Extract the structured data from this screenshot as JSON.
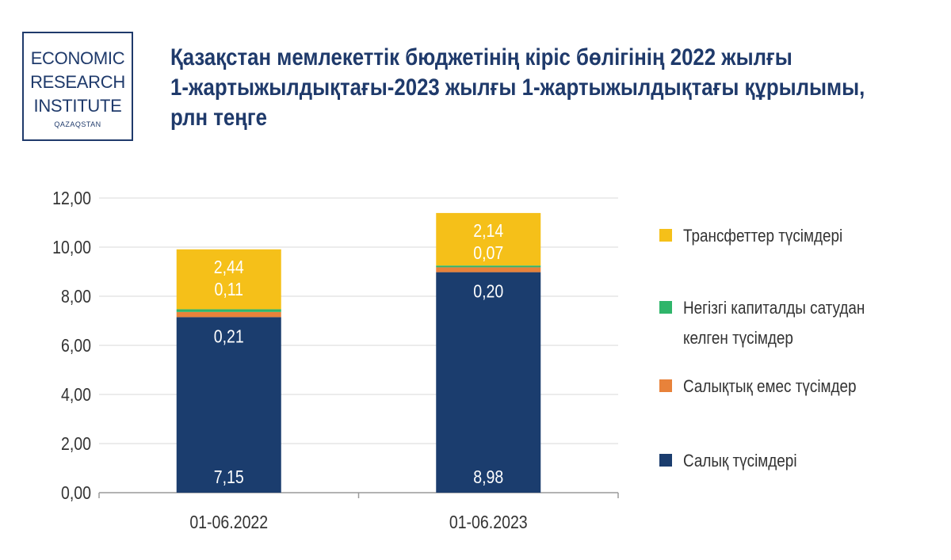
{
  "logo": {
    "line1": "ECONOMIC",
    "line2": "RESEARCH",
    "line3": "INSTITUTE",
    "line4": "QAZAQSTAN"
  },
  "title_lines": [
    "Қазақстан мемлекеттік бюджетінің кіріс бөлігінің  2022 жылғы",
    "1-жартыжылдықтағы-2023 жылғы 1-жартыжылдықтағы құрылымы,",
    "рлн теңге"
  ],
  "chart_data": {
    "type": "bar",
    "stacked": true,
    "title": "Қазақстан мемлекеттік бюджетінің кіріс бөлігінің  2022 жылғы 1-жартыжылдықтағы-2023 жылғы 1-жартыжылдықтағы құрылымы, рлн теңге",
    "categories": [
      "01-06.2022",
      "01-06.2023"
    ],
    "series": [
      {
        "name": "Салық түсімдері",
        "values": [
          7.15,
          8.98
        ],
        "labels": [
          "7,15",
          "8,98"
        ],
        "color": "#1b3d6e"
      },
      {
        "name": "Салықтық емес түсімдер",
        "values": [
          0.21,
          0.2
        ],
        "labels": [
          "0,21",
          "0,20"
        ],
        "color": "#e8823a"
      },
      {
        "name": "Негізгі капиталды сатудан келген түсімдер",
        "values": [
          0.11,
          0.07
        ],
        "labels": [
          "0,11",
          "0,07"
        ],
        "color": "#2fb56a"
      },
      {
        "name": "Трансфеттер түсімдері",
        "values": [
          2.44,
          2.14
        ],
        "labels": [
          "2,44",
          "2,14"
        ],
        "color": "#f5c019"
      }
    ],
    "ylim": [
      0,
      12
    ],
    "yticks": [
      "0,00",
      "2,00",
      "4,00",
      "6,00",
      "8,00",
      "10,00",
      "12,00"
    ],
    "grid": true,
    "legend": "right",
    "legend_lines": [
      [
        "Трансфеттер түсімдері"
      ],
      [
        "Негізгі капиталды сатудан",
        "келген түсімдер"
      ],
      [
        "Салықтық емес түсімдер"
      ],
      [
        "Салық түсімдері"
      ]
    ]
  }
}
